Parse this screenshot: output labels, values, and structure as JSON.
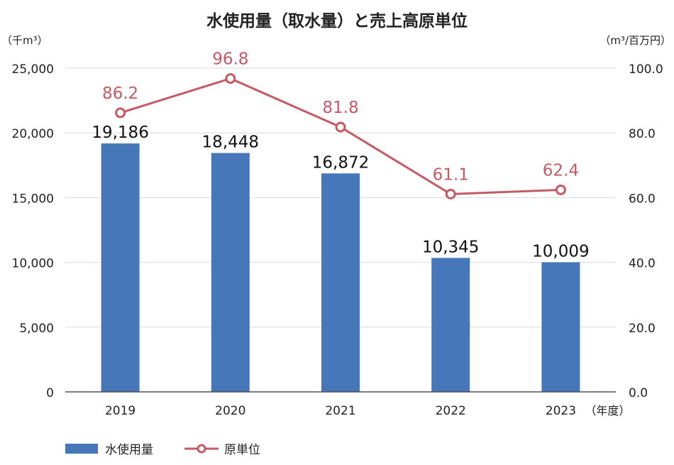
{
  "chart_data": {
    "type": "bar+line",
    "title": "水使用量（取水量）と売上高原単位",
    "left_axis_unit": "（千m³）",
    "right_axis_unit": "（m³/百万円）",
    "x_unit": "（年度）",
    "categories": [
      "2019",
      "2020",
      "2021",
      "2022",
      "2023"
    ],
    "y_left": {
      "min": 0,
      "max": 25000,
      "ticks": [
        "0",
        "5,000",
        "10,000",
        "15,000",
        "20,000",
        "25,000"
      ]
    },
    "y_right": {
      "min": 0,
      "max": 100,
      "ticks": [
        "0.0",
        "20.0",
        "40.0",
        "60.0",
        "80.0",
        "100.0"
      ]
    },
    "series": [
      {
        "name": "水使用量",
        "type": "bar",
        "axis": "left",
        "values": [
          19186,
          18448,
          16872,
          10345,
          10009
        ],
        "labels": [
          "19,186",
          "18,448",
          "16,872",
          "10,345",
          "10,009"
        ],
        "color": "#4677b8"
      },
      {
        "name": "原単位",
        "type": "line",
        "axis": "right",
        "values": [
          86.2,
          96.8,
          81.8,
          61.1,
          62.4
        ],
        "labels": [
          "86.2",
          "96.8",
          "81.8",
          "61.1",
          "62.4"
        ],
        "color": "#c45a63"
      }
    ],
    "grid": true,
    "legend": "bottom-left"
  }
}
